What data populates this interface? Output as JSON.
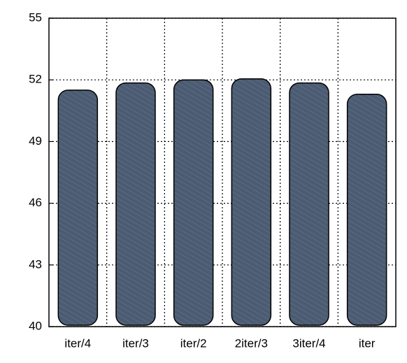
{
  "chart_data": {
    "type": "bar",
    "categories": [
      "iter/4",
      "iter/3",
      "iter/2",
      "2iter/3",
      "3iter/4",
      "iter"
    ],
    "values": [
      51.5,
      51.85,
      52.0,
      52.05,
      51.85,
      51.3
    ],
    "color": "#4b5b72",
    "ylim": [
      40,
      55
    ],
    "yticks": [
      40,
      43,
      46,
      49,
      52,
      55
    ],
    "grid": true
  }
}
